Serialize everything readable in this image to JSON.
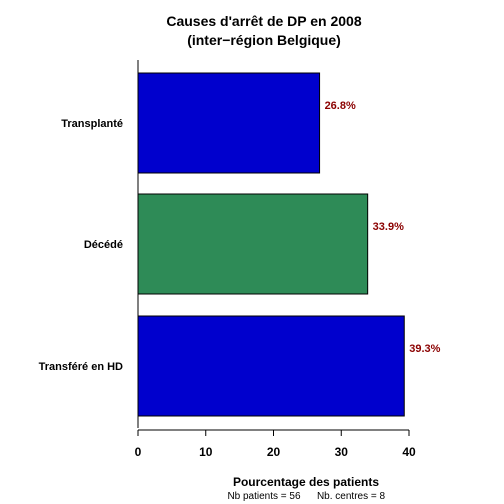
{
  "chart_data": {
    "type": "bar",
    "orientation": "horizontal",
    "title_lines": [
      "Causes d'arrêt de DP en 2008",
      "(inter−région Belgique)"
    ],
    "categories": [
      "Transplanté",
      "Décédé",
      "Transféré en HD"
    ],
    "values": [
      26.8,
      33.9,
      39.3
    ],
    "value_labels": [
      "26.8%",
      "33.9%",
      "39.3%"
    ],
    "bar_colors": [
      "#0000cd",
      "#2e8b57",
      "#0000cd"
    ],
    "label_color": "#8b0000",
    "xlabel": "Pourcentage des patients",
    "xlim": [
      0,
      40
    ],
    "xticks": [
      "0",
      "10",
      "20",
      "30",
      "40"
    ],
    "footnote": {
      "patients": "Nb patients =  56",
      "centres": "Nb. centres =  8"
    }
  }
}
